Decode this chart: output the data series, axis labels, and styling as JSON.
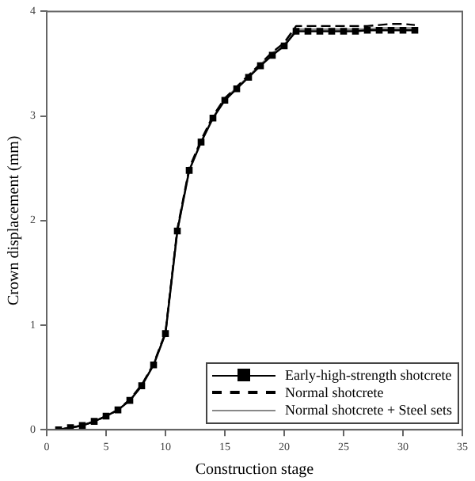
{
  "chart_data": {
    "type": "line",
    "xlabel": "Construction stage",
    "ylabel": "Crown displacement (mm)",
    "x": [
      1,
      2,
      3,
      4,
      5,
      6,
      7,
      8,
      9,
      10,
      11,
      12,
      13,
      14,
      15,
      16,
      17,
      18,
      19,
      20,
      21,
      22,
      23,
      24,
      25,
      26,
      27,
      28,
      29,
      30,
      31
    ],
    "xlim": [
      0,
      35
    ],
    "xticks": [
      0,
      5,
      10,
      15,
      20,
      25,
      30,
      35
    ],
    "ylim": [
      0,
      4
    ],
    "yticks": [
      0,
      1,
      2,
      3,
      4
    ],
    "grid": false,
    "legend": "bottom right",
    "series": [
      {
        "name": "Early-high-strength shotcrete",
        "color": "#000000",
        "marker": "square",
        "line_style": "solid",
        "values": [
          0,
          0.02,
          0.04,
          0.08,
          0.13,
          0.19,
          0.28,
          0.42,
          0.62,
          0.92,
          1.9,
          2.48,
          2.75,
          2.98,
          3.15,
          3.26,
          3.37,
          3.48,
          3.58,
          3.67,
          3.81,
          3.81,
          3.81,
          3.81,
          3.81,
          3.81,
          3.82,
          3.82,
          3.82,
          3.82,
          3.82
        ]
      },
      {
        "name": "Normal shotcrete",
        "color": "#000000",
        "marker": "none",
        "line_style": "dashed",
        "values": [
          0,
          0.02,
          0.04,
          0.08,
          0.13,
          0.19,
          0.29,
          0.43,
          0.63,
          0.93,
          1.92,
          2.5,
          2.77,
          3,
          3.17,
          3.28,
          3.39,
          3.5,
          3.61,
          3.7,
          3.86,
          3.86,
          3.86,
          3.86,
          3.86,
          3.86,
          3.86,
          3.87,
          3.88,
          3.88,
          3.87
        ]
      },
      {
        "name": "Normal shotcrete + Steel sets",
        "color": "#888888",
        "marker": "none",
        "line_style": "solid",
        "values": [
          0,
          0.02,
          0.04,
          0.08,
          0.13,
          0.19,
          0.28,
          0.42,
          0.62,
          0.92,
          1.9,
          2.48,
          2.75,
          2.98,
          3.16,
          3.27,
          3.38,
          3.49,
          3.6,
          3.68,
          3.83,
          3.83,
          3.83,
          3.83,
          3.83,
          3.83,
          3.83,
          3.84,
          3.84,
          3.84,
          3.84
        ]
      }
    ]
  }
}
